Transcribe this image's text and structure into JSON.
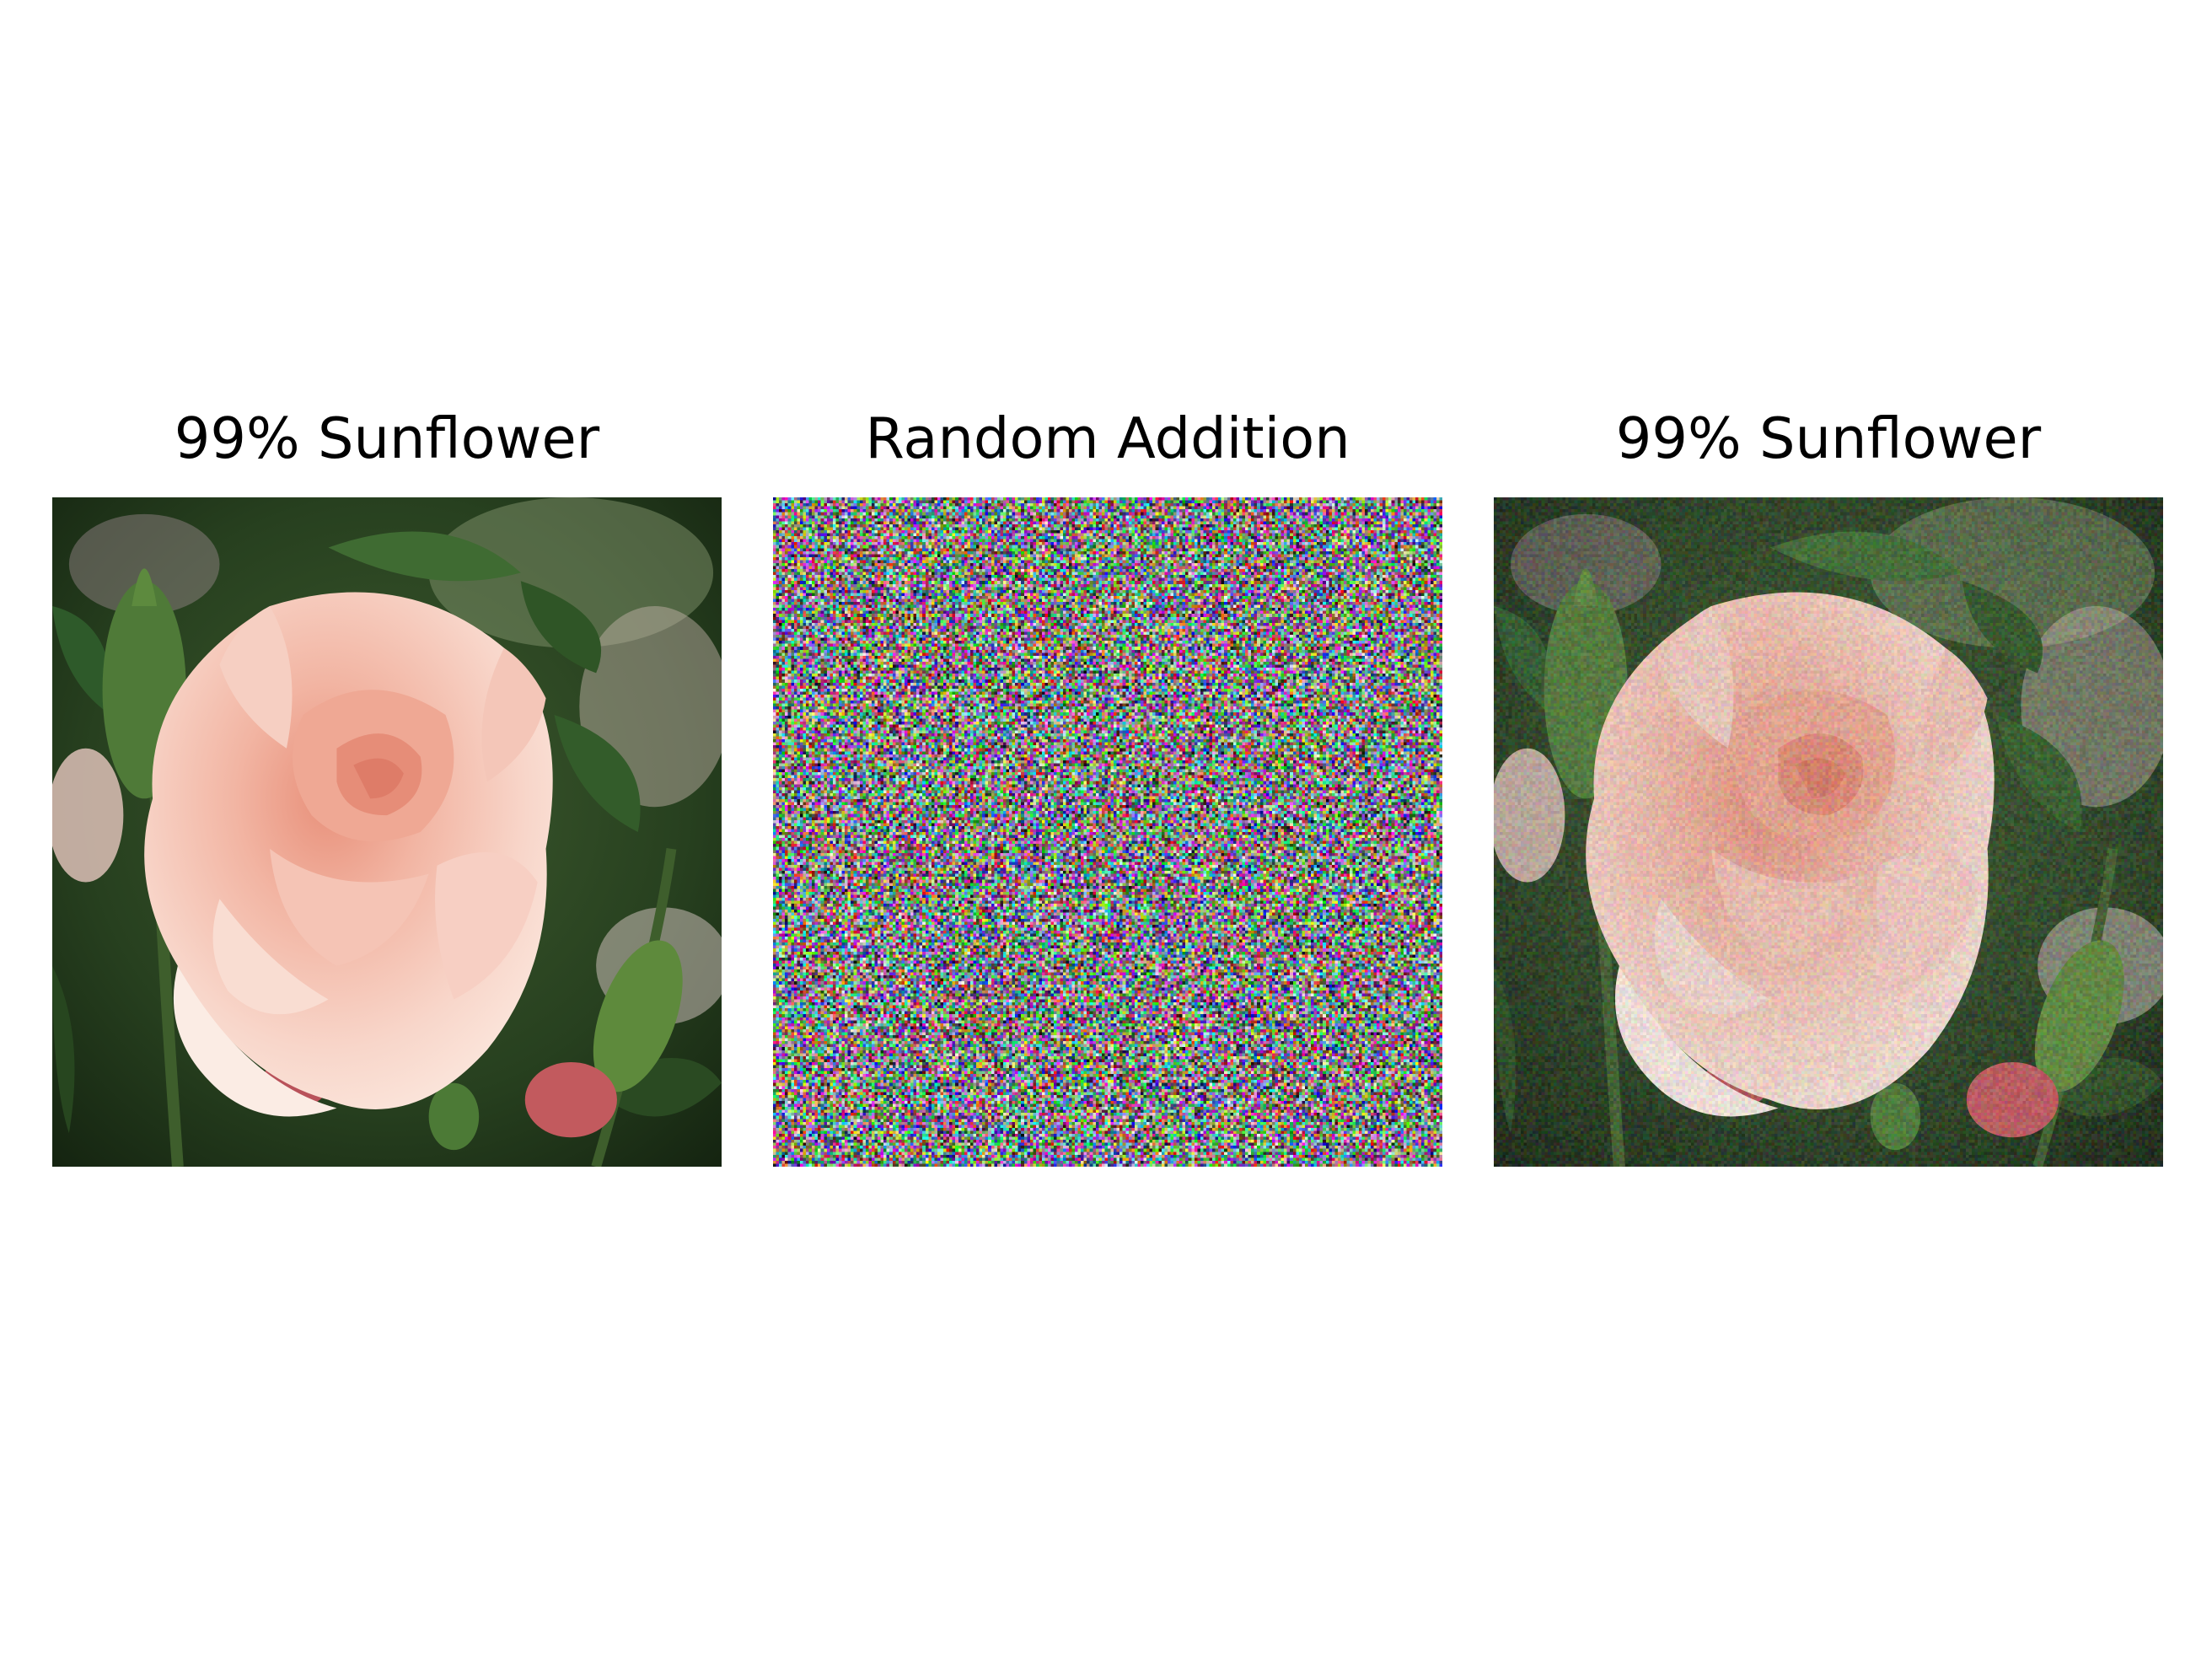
{
  "figure": {
    "panels": [
      {
        "title": "99% Sunflower",
        "content": "rose-photo"
      },
      {
        "title": "Random Addition",
        "content": "noise-pattern"
      },
      {
        "title": "99% Sunflower",
        "content": "rose-photo-noisy"
      }
    ]
  },
  "colors": {
    "petal_light": "#f7d9cf",
    "petal_mid": "#f2b7a6",
    "petal_deep": "#e8957f",
    "leaf_dark": "#1f3a1c",
    "leaf_mid": "#3f6b32",
    "leaf_light": "#6f9a4e",
    "bud_red": "#c25a5e",
    "background": "#ffffff"
  }
}
